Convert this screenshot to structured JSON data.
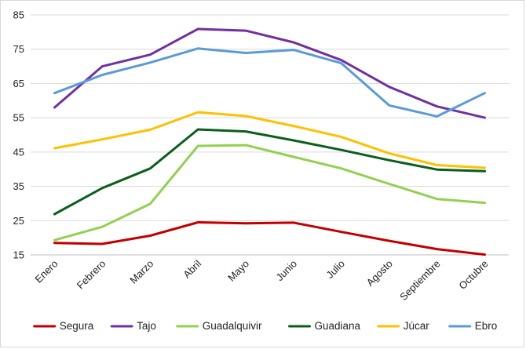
{
  "chart_data": {
    "type": "line",
    "title": "",
    "xlabel": "",
    "ylabel": "",
    "categories": [
      "Enero",
      "Febrero",
      "Marzo",
      "Abril",
      "Mayo",
      "Junio",
      "Julio",
      "Agosto",
      "Septiembre",
      "Octubre"
    ],
    "ylim": [
      15,
      85
    ],
    "yticks": [
      15,
      25,
      35,
      45,
      55,
      65,
      75,
      85
    ],
    "grid": "horizontal",
    "legend_position": "bottom",
    "series": [
      {
        "name": "Segura",
        "color": "#c00000",
        "values": [
          18.5,
          18.2,
          20.6,
          24.5,
          24.2,
          24.4,
          21.7,
          19.1,
          16.7,
          15.1
        ]
      },
      {
        "name": "Tajo",
        "color": "#7030a0",
        "values": [
          58.0,
          70.0,
          73.4,
          80.9,
          80.4,
          77.0,
          71.8,
          64.0,
          58.3,
          55.0
        ]
      },
      {
        "name": "Guadalquivir",
        "color": "#92d050",
        "values": [
          19.3,
          23.2,
          29.9,
          46.8,
          47.0,
          43.6,
          40.2,
          35.7,
          31.3,
          30.2
        ]
      },
      {
        "name": "Guadiana",
        "color": "#0b5e1c",
        "values": [
          26.9,
          34.5,
          40.2,
          51.6,
          51.0,
          48.4,
          45.6,
          42.6,
          39.9,
          39.4
        ]
      },
      {
        "name": "Júcar",
        "color": "#ffc000",
        "values": [
          46.1,
          48.7,
          51.5,
          56.6,
          55.5,
          52.6,
          49.4,
          44.6,
          41.2,
          40.4
        ]
      },
      {
        "name": "Ebro",
        "color": "#5b9bd5",
        "values": [
          62.2,
          67.5,
          71.1,
          75.2,
          73.9,
          74.8,
          70.9,
          58.6,
          55.4,
          62.2
        ]
      }
    ]
  }
}
